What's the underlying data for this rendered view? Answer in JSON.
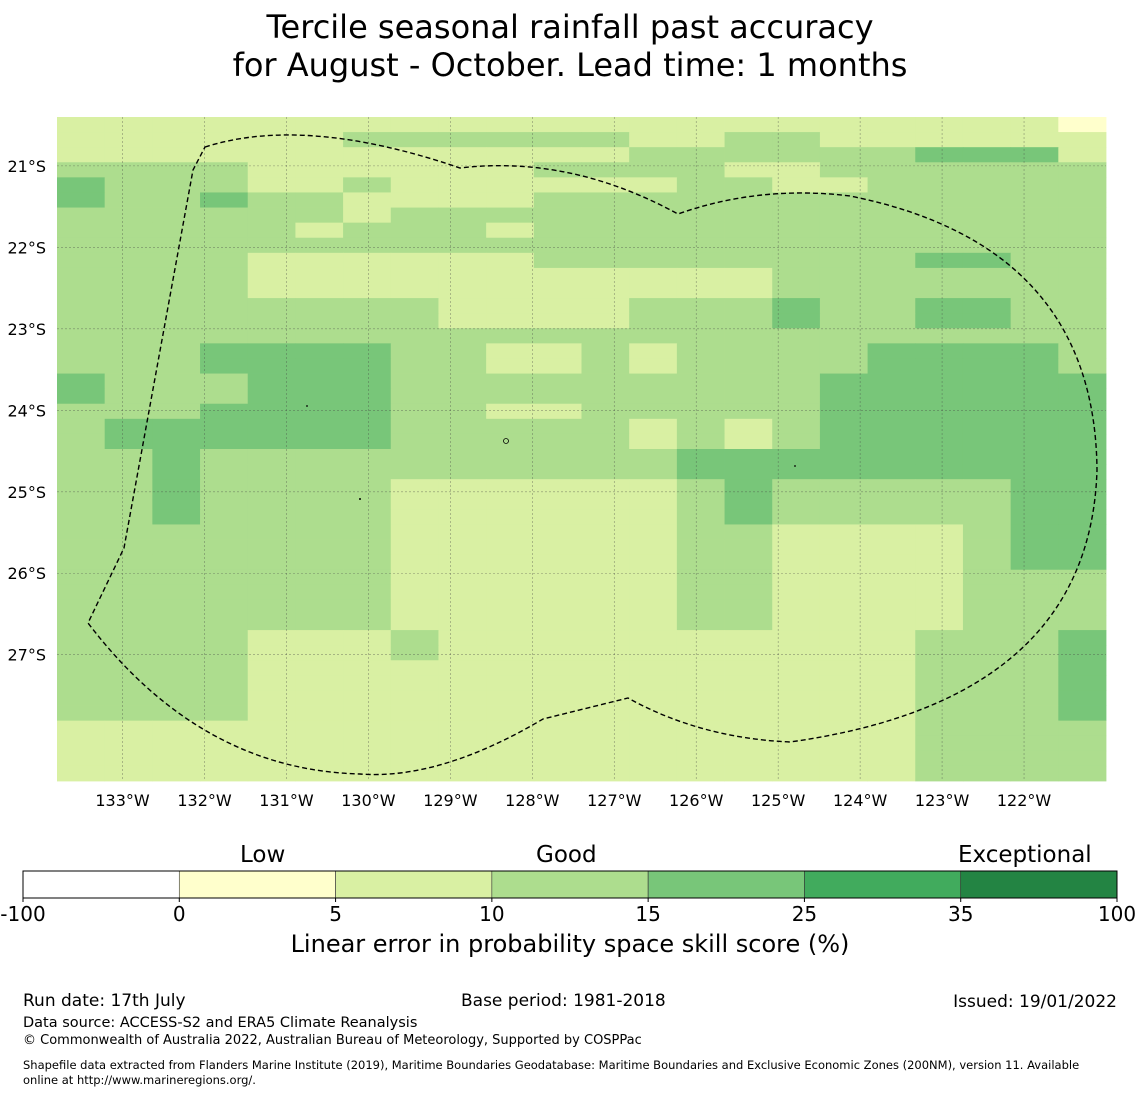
{
  "title": {
    "line1": "Tercile seasonal rainfall past accuracy",
    "line2": "for August - October. Lead time: 1 months"
  },
  "map": {
    "lon_labels": [
      "133°W",
      "132°W",
      "131°W",
      "130°W",
      "129°W",
      "128°W",
      "127°W",
      "126°W",
      "125°W",
      "124°W",
      "123°W",
      "122°W"
    ],
    "lat_labels": [
      "21°S",
      "22°S",
      "23°S",
      "24°S",
      "25°S",
      "26°S",
      "27°S"
    ],
    "lon_range": [
      -133.8,
      -121.0
    ],
    "lat_range": [
      -20.4,
      -28.55
    ],
    "gridlines": true,
    "boundary_style": "dashed"
  },
  "colorbar": {
    "boundaries": [
      "-100",
      "0",
      "5",
      "10",
      "15",
      "25",
      "35",
      "100"
    ],
    "colors": [
      "#ffffff",
      "#ffffcc",
      "#d9f0a3",
      "#addd8e",
      "#78c679",
      "#41ab5d",
      "#238443"
    ],
    "categories": [
      "Low",
      "Good",
      "Exceptional"
    ],
    "label": "Linear error in probability space skill score (%)"
  },
  "skill_grid": {
    "class_colors": [
      "#ffffcc",
      "#d9f0a3",
      "#addd8e",
      "#78c679"
    ],
    "rows": [
      "1111111111111111111110",
      "1111112222221122111111",
      "1111111111112222223331",
      "2222111111222211222222",
      "3222112111111221122222",
      "3223221111222222222222",
      "2222221222222222222222",
      "2222212221222222222222",
      "2222222222222222222222",
      "2222111111222222223322",
      "2222111111111112222222",
      "2222111111111112222222",
      "2222222211112223223322",
      "2222222211112223223322",
      "2222222222222222222222",
      "2223333221121222233332",
      "2223333221121222233332",
      "3222333222222222333333",
      "3222333222222222333333",
      "2223333221122222333333",
      "2333333222221212333333",
      "2333333222221212333333",
      "2232222222222333333333",
      "2232222222222333333333",
      "2232222111111232222233",
      "2232222111111232222233",
      "2232222111111232222233",
      "2222222111111221111233",
      "2222222111111221111233",
      "2222222111111221111233",
      "2222222111111221111222",
      "2222222111111221111222",
      "2222222111111221111222",
      "2222222111111221111222",
      "2222111211111111112223",
      "2222111211111111112223",
      "2222111111111111112223",
      "2222111111111111112223",
      "2222111111111111112223",
      "2222111111111111112223",
      "1111111111111111112222",
      "1111111111111111112222",
      "1111111111111111112222",
      "1111111111111111112222"
    ]
  },
  "footer": {
    "run_date": "Run date: 17th July",
    "base_period": "Base period: 1981-2018",
    "issued": "Issued: 19/01/2022",
    "data_source": "Data source: ACCESS-S2 and ERA5 Climate Reanalysis",
    "copyright": "© Commonwealth of Australia 2022, Australian Bureau of Meteorology, Supported by COSPPac",
    "shapefile1": "Shapefile data extracted from Flanders Marine Institute (2019), Maritime Boundaries Geodatabase: Maritime Boundaries and Exclusive Economic Zones (200NM), version 11. Available",
    "shapefile2": "online at http://www.marineregions.org/."
  }
}
